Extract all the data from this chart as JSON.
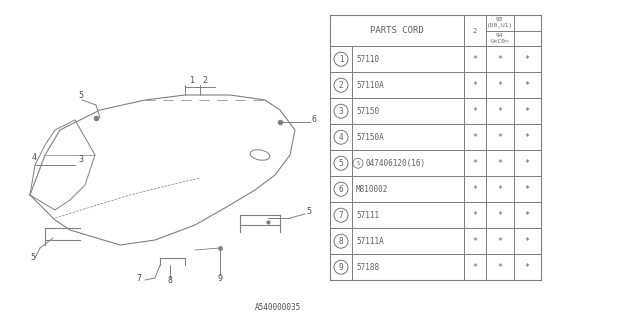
{
  "title": "",
  "bg_color": "#ffffff",
  "diagram_id": "A540000035",
  "table": {
    "header_col1": "PARTS CORD",
    "header_col2": "2",
    "header_col3_top": "9\n3\n(U0,U1)",
    "header_col3_bot": "9\n4\nU<C0>",
    "rows": [
      {
        "num": "1",
        "part": "57110",
        "c2": "*",
        "c3": "*"
      },
      {
        "num": "2",
        "part": "57110A",
        "c2": "*",
        "c3": "*"
      },
      {
        "num": "3",
        "part": "57150",
        "c2": "*",
        "c3": "*"
      },
      {
        "num": "4",
        "part": "57150A",
        "c2": "*",
        "c3": "*"
      },
      {
        "num": "5",
        "part": "©047406120（16）",
        "c2": "*",
        "c3": "*"
      },
      {
        "num": "6",
        "part": "M810002",
        "c2": "*",
        "c3": "*"
      },
      {
        "num": "7",
        "part": "57111",
        "c2": "*",
        "c3": "*"
      },
      {
        "num": "8",
        "part": "57111A",
        "c2": "*",
        "c3": "*"
      },
      {
        "num": "9",
        "part": "57188",
        "c2": "*",
        "c3": "*"
      }
    ]
  },
  "table_colors": {
    "border": "#808080",
    "header_bg": "#ffffff",
    "row_bg": "#ffffff",
    "text": "#606060"
  }
}
